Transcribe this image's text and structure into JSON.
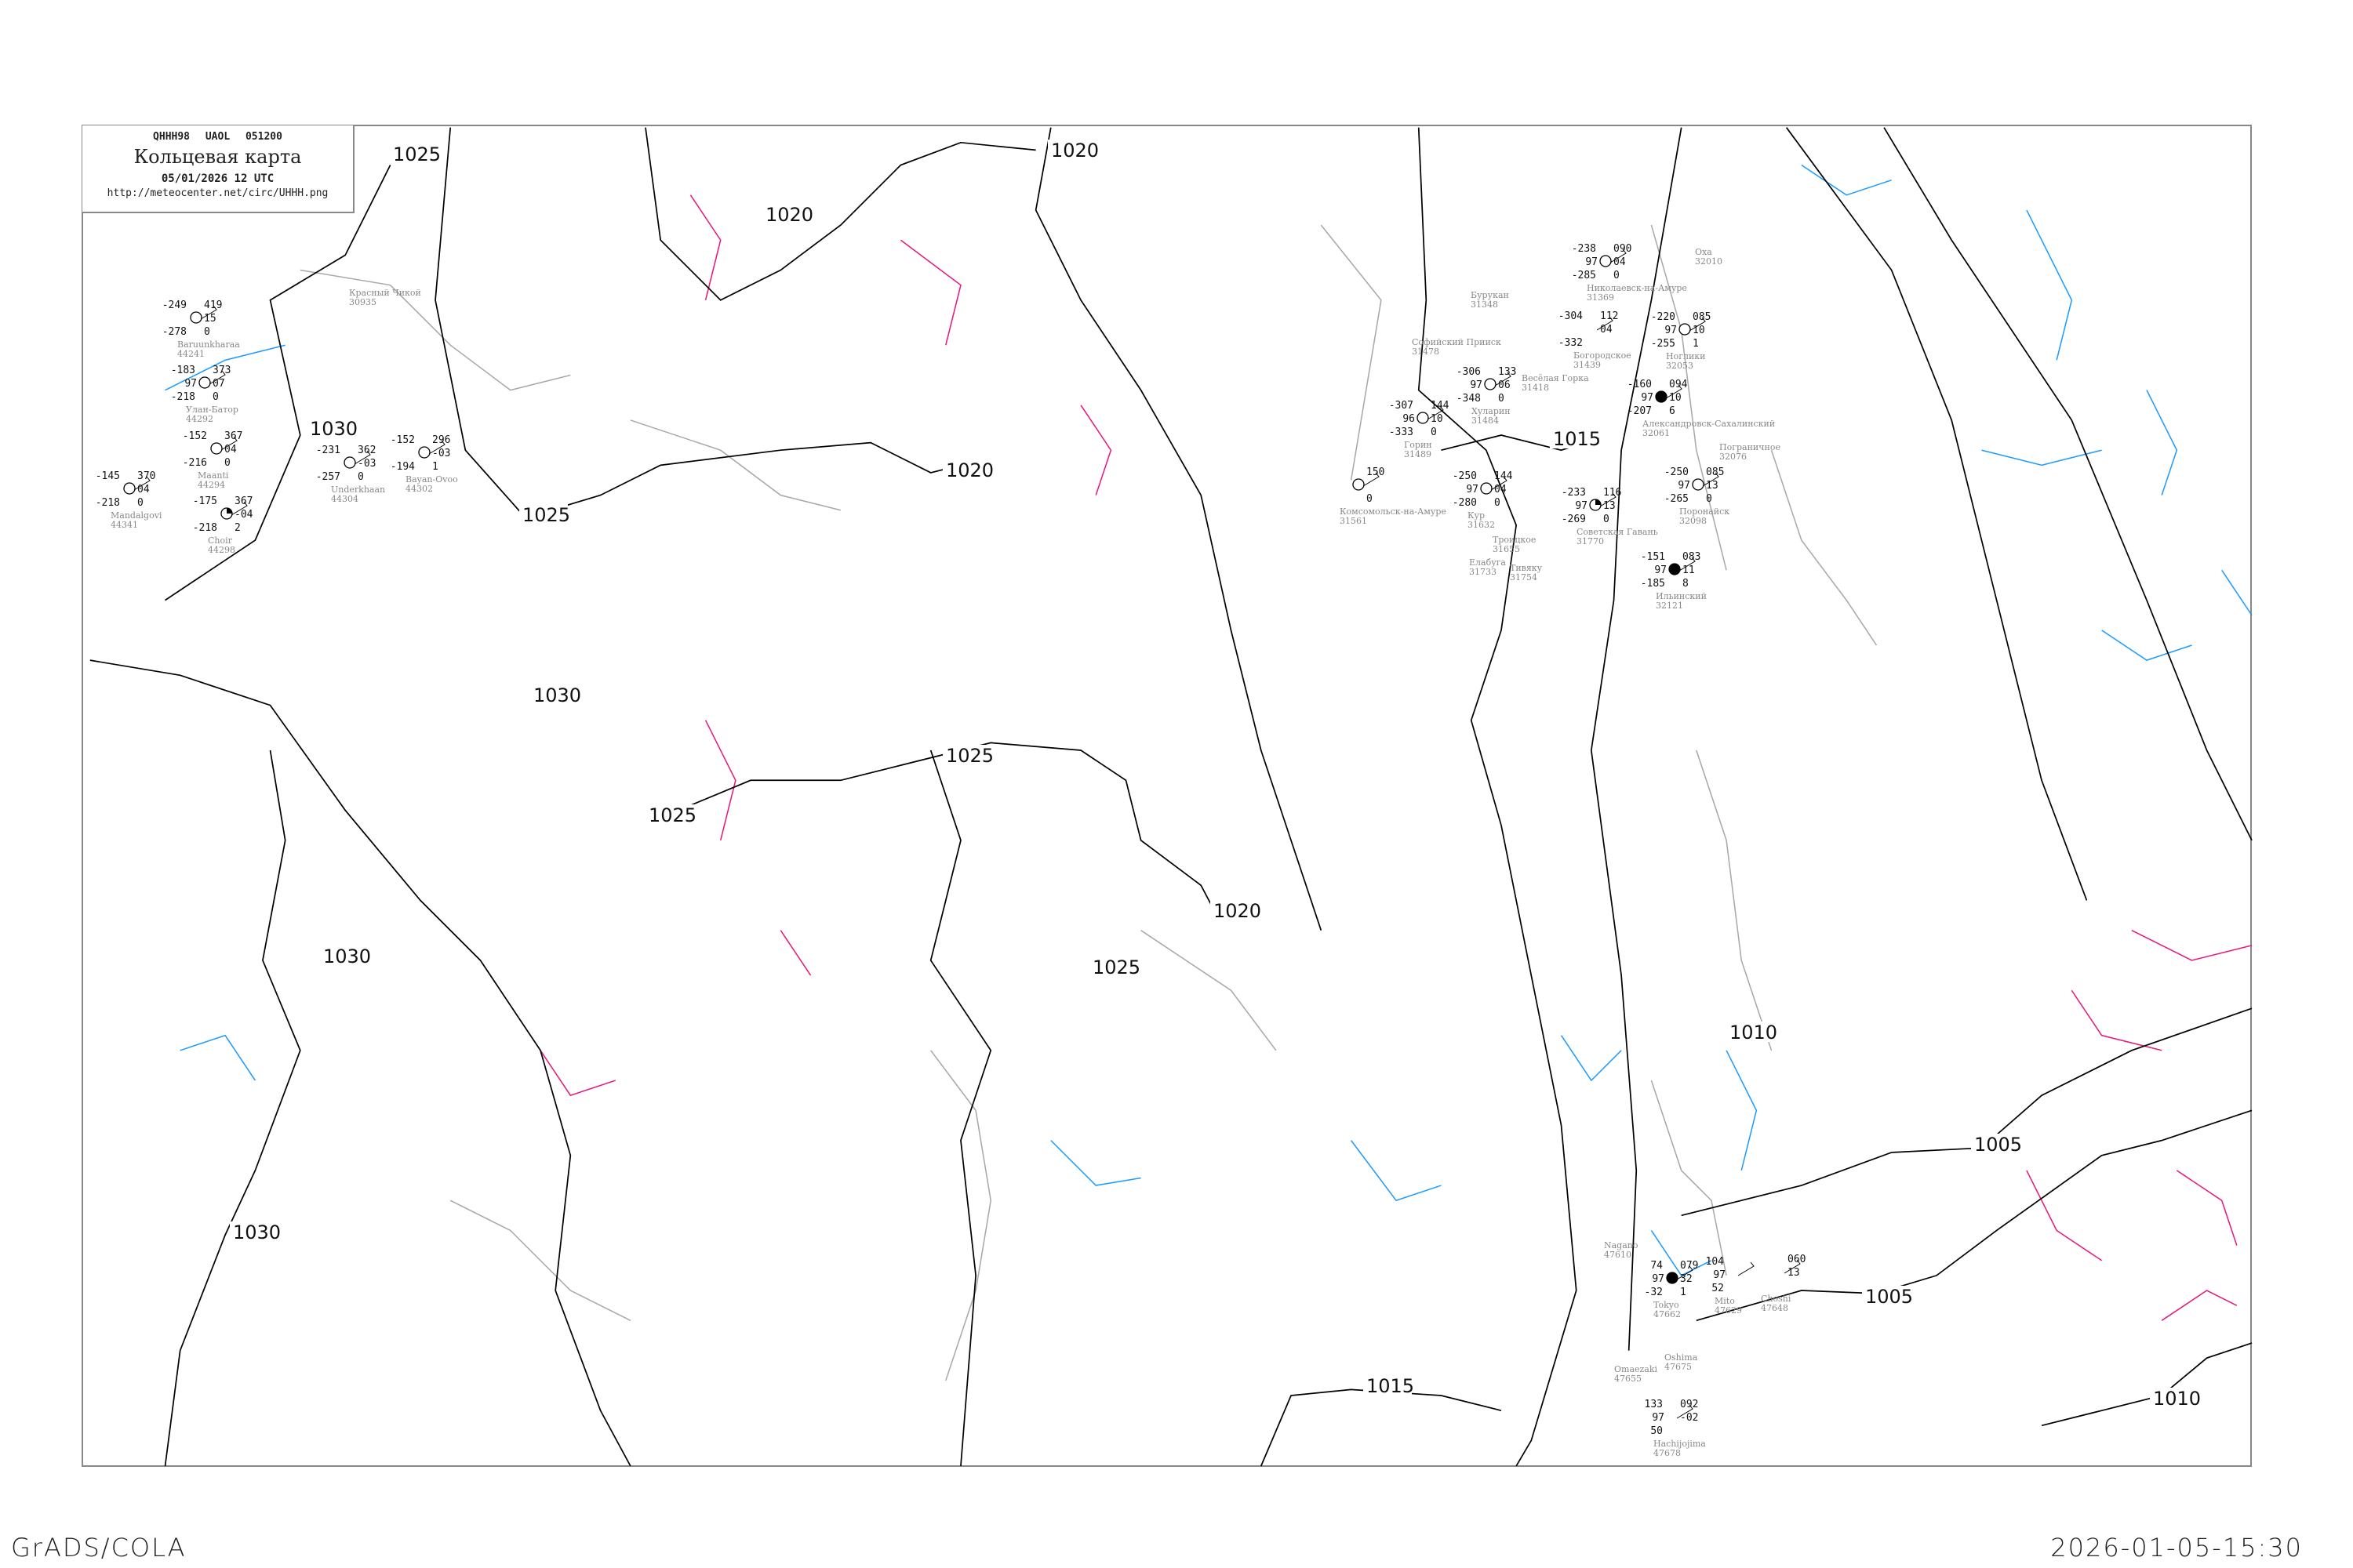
{
  "header": {
    "bulletin": "QHHH98  UAOL  051200",
    "title": "Кольцевая карта",
    "date": "05/01/2026 12 UTC",
    "url": "http://meteocenter.net/circ/UHHH.png"
  },
  "footer": {
    "left": "GrADS/COLA",
    "right": "2026-01-05-15:30"
  },
  "colors": {
    "isobar": "#000000",
    "isotherm_cold": "#1e9bff",
    "isotherm_warm": "#e6197d",
    "coastline": "#a0a0a0",
    "frame": "#888888",
    "snow_square": "#3c8cf0",
    "rain_square": "#40e0b0",
    "fog_square": "#c8c896"
  },
  "isobar_labels": [
    "1025",
    "1020",
    "1020",
    "1030",
    "1025",
    "1030",
    "1025",
    "1025",
    "1020",
    "1020",
    "1025",
    "1030",
    "1030",
    "1015",
    "1010",
    "1005",
    "1005",
    "1015",
    "1010"
  ],
  "stations": [
    {
      "name": "Николаевск-на-Амуре",
      "id": "31369",
      "tl": "-238",
      "ml": "97",
      "bl": "-285",
      "tr": "090",
      "mr": "04",
      "br": "0",
      "sky": "clear"
    },
    {
      "name": "Богородское",
      "id": "31439",
      "tl": "-304",
      "ml": "",
      "bl": "-332",
      "tr": "112",
      "mr": "04",
      "br": "",
      "sky": "none"
    },
    {
      "name": "Ноглики",
      "id": "32053",
      "tl": "-220",
      "ml": "97",
      "bl": "-255",
      "tr": "085",
      "mr": "10",
      "br": "1",
      "sky": "clear"
    },
    {
      "name": "Александровск-Сахалинский",
      "id": "32061",
      "tl": "-160",
      "ml": "97",
      "bl": "-207",
      "tr": "094",
      "mr": "10",
      "br": "6",
      "sky": "filled"
    },
    {
      "name": "Поронайск",
      "id": "32098",
      "tl": "-250",
      "ml": "97",
      "bl": "-265",
      "tr": "085",
      "mr": "13",
      "br": "0",
      "sky": "clear"
    },
    {
      "name": "Советская Гавань",
      "id": "31770",
      "tl": "-233",
      "ml": "97",
      "bl": "-269",
      "tr": "116",
      "mr": "13",
      "br": "0",
      "sky": "half"
    },
    {
      "name": "Кур",
      "id": "31632",
      "tl": "-250",
      "ml": "97",
      "bl": "-280",
      "tr": "144",
      "mr": "04",
      "br": "0",
      "sky": "clear"
    },
    {
      "name": "Хуларин",
      "id": "31484",
      "tl": "-306",
      "ml": "97",
      "bl": "-348",
      "tr": "133",
      "mr": "06",
      "br": "0",
      "sky": "clear"
    },
    {
      "name": "Горин",
      "id": "31489",
      "tl": "-307",
      "ml": "96",
      "bl": "-333",
      "tr": "144",
      "mr": "10",
      "br": "0",
      "sky": "clear"
    },
    {
      "name": "Ильинский",
      "id": "32121",
      "tl": "-151",
      "ml": "97",
      "bl": "-185",
      "tr": "083",
      "mr": "11",
      "br": "8",
      "sky": "filled"
    },
    {
      "name": "Комсомольск-на-Амуре",
      "id": "31561",
      "tl": "",
      "ml": "",
      "bl": "",
      "tr": "150",
      "mr": "",
      "br": "0",
      "sky": "clear"
    },
    {
      "name": "Tokyo",
      "id": "47662",
      "tl": "74",
      "ml": "97",
      "bl": "-32",
      "tr": "079",
      "mr": "32",
      "br": "1",
      "sky": "filled"
    },
    {
      "name": "Mito",
      "id": "47629",
      "tl": "104",
      "ml": "97",
      "bl": "52",
      "tr": "",
      "mr": "",
      "br": "",
      "sky": "none"
    },
    {
      "name": "Choshi",
      "id": "47648",
      "tl": "",
      "ml": "",
      "bl": "",
      "tr": "060",
      "mr": "13",
      "br": "",
      "sky": "none"
    },
    {
      "name": "Hachijojima",
      "id": "47678",
      "tl": "133",
      "ml": "97",
      "bl": "50",
      "tr": "092",
      "mr": "-02",
      "br": "",
      "sky": "none"
    },
    {
      "name": "Baruunkharaa",
      "id": "44241",
      "tl": "-249",
      "ml": "",
      "bl": "-278",
      "tr": "419",
      "mr": "15",
      "br": "0",
      "sky": "clear"
    },
    {
      "name": "Улан-Батор",
      "id": "44292",
      "tl": "-183",
      "ml": "97",
      "bl": "-218",
      "tr": "373",
      "mr": "07",
      "br": "0",
      "sky": "clear"
    },
    {
      "name": "Maanti",
      "id": "44294",
      "tl": "-152",
      "ml": "",
      "bl": "-216",
      "tr": "367",
      "mr": "04",
      "br": "0",
      "sky": "clear"
    },
    {
      "name": "Mandalgovi",
      "id": "44341",
      "tl": "-145",
      "ml": "",
      "bl": "-218",
      "tr": "370",
      "mr": "04",
      "br": "0",
      "sky": "clear"
    },
    {
      "name": "Choir",
      "id": "44298",
      "tl": "-175",
      "ml": "",
      "bl": "-218",
      "tr": "367",
      "mr": "-04",
      "br": "2",
      "sky": "half"
    },
    {
      "name": "Underkhaan",
      "id": "44304",
      "tl": "-231",
      "ml": "",
      "bl": "-257",
      "tr": "362",
      "mr": "-03",
      "br": "0",
      "sky": "clear"
    },
    {
      "name": "Bayan-Ovoo",
      "id": "44302",
      "tl": "-152",
      "ml": "",
      "bl": "-194",
      "tr": "296",
      "mr": "-03",
      "br": "1",
      "sky": "clear"
    }
  ],
  "place_labels": [
    {
      "name": "Оха",
      "id": "32010"
    },
    {
      "name": "Бурукан",
      "id": "31348"
    },
    {
      "name": "Пограничное",
      "id": "32076"
    },
    {
      "name": "Троицкое",
      "id": "31655"
    },
    {
      "name": "Софийский Прииск",
      "id": "31478"
    },
    {
      "name": "Весёлая Горка",
      "id": "31418"
    },
    {
      "name": "Елабуга",
      "id": "31733"
    },
    {
      "name": "Тивяку",
      "id": "31754"
    },
    {
      "name": "Nagano",
      "id": "47610"
    },
    {
      "name": "Oshima",
      "id": "47675"
    },
    {
      "name": "Omaezaki",
      "id": "47655"
    },
    {
      "name": "Красный Чикой",
      "id": "30935"
    }
  ]
}
